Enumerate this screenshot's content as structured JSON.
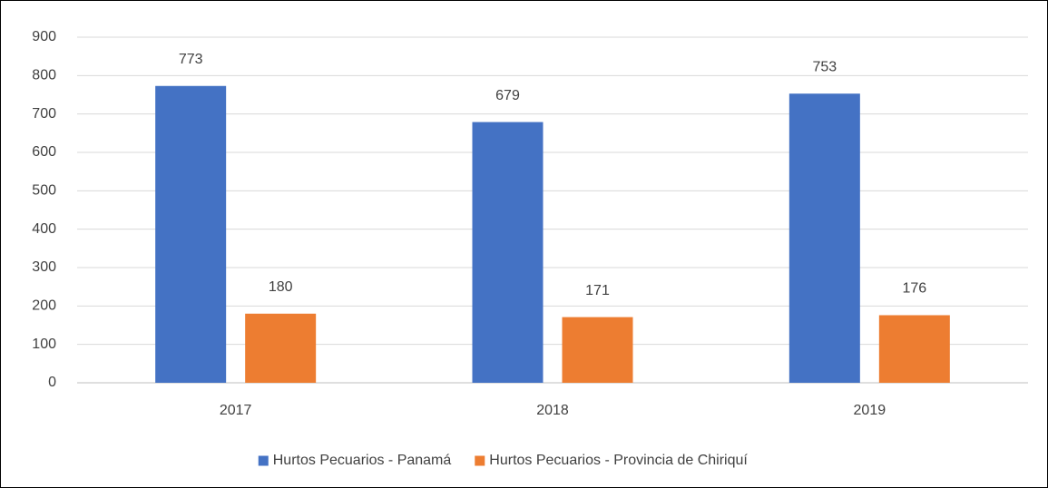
{
  "chart_data": {
    "type": "bar",
    "categories": [
      "2017",
      "2018",
      "2019"
    ],
    "series": [
      {
        "name": "Hurtos Pecuarios - Panamá",
        "color": "#4472c4",
        "values": [
          773,
          679,
          753
        ]
      },
      {
        "name": "Hurtos Pecuarios - Provincia de Chiriquí",
        "color": "#ed7d31",
        "values": [
          180,
          171,
          176
        ]
      }
    ],
    "ylim": [
      0,
      900
    ],
    "yticks": [
      0,
      100,
      200,
      300,
      400,
      500,
      600,
      700,
      800,
      900
    ],
    "grid": true,
    "legend": "bottom",
    "data_labels": true
  }
}
